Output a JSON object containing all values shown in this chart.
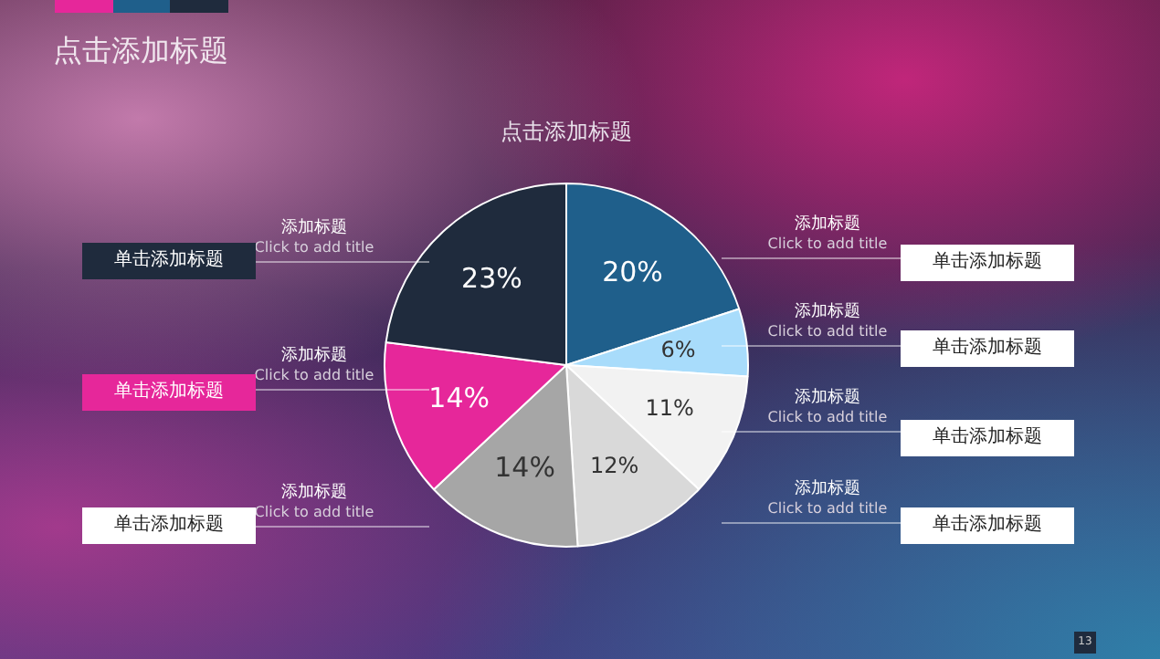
{
  "chart_data": {
    "type": "pie",
    "title": "点击添加标题",
    "subtitle": "点击添加标题",
    "categories": [
      null,
      null,
      null,
      null,
      null,
      null,
      null
    ],
    "values": [
      20,
      6,
      11,
      12,
      14,
      14,
      23
    ],
    "colors": [
      "#1f5f8b",
      "#a8dcfb",
      "#f2f2f2",
      "#d9d9d9",
      "#a6a6a6",
      "#e6279a",
      "#1f2b3d"
    ],
    "value_labels": [
      "20%",
      "6%",
      "11%",
      "12%",
      "14%",
      "14%",
      "23%"
    ],
    "annotations": [
      "添加标题",
      "Click to add title",
      "单击添加标题",
      "添加标题",
      "Click to add title",
      "单击添加标题",
      "添加标题",
      "Click to add title",
      "单击添加标题",
      "添加标题",
      "Click to add title",
      "单击添加标题",
      "添加标题",
      "Click to add title",
      "单击添加标题",
      "添加标题",
      "Click to add title",
      "单击添加标题",
      "添加标题",
      "Click to add title",
      "单击添加标题",
      "13"
    ]
  }
}
